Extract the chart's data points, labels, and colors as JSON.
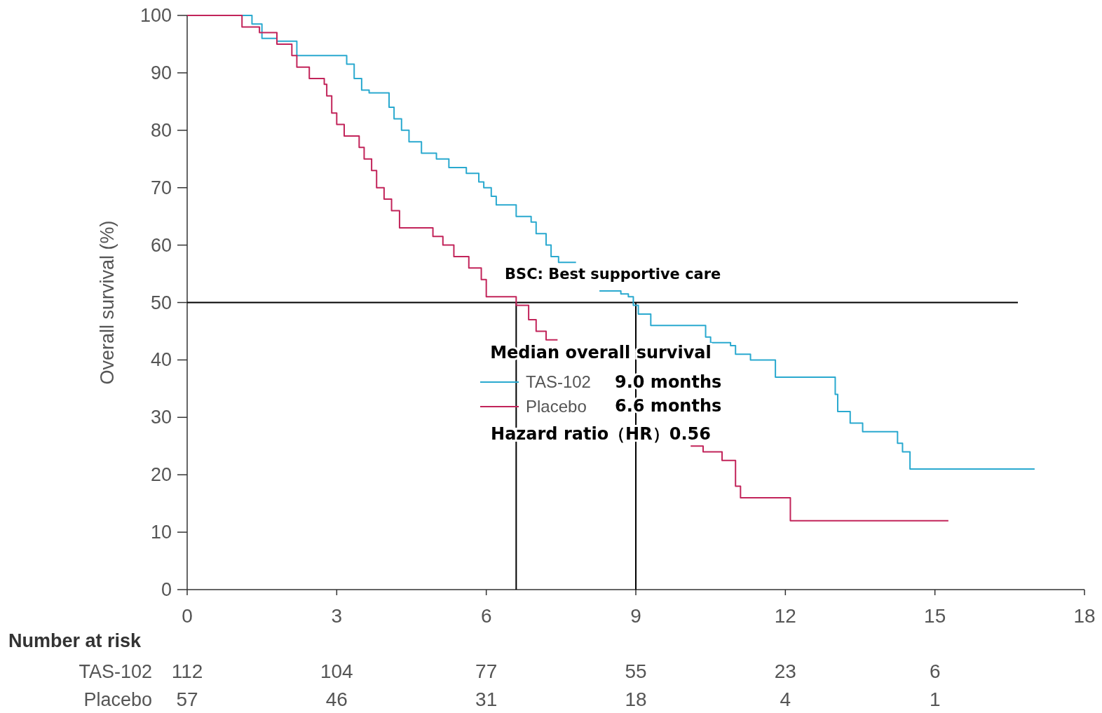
{
  "chart_data": {
    "type": "step",
    "xlabel": null,
    "ylabel": "Overall survival (%)",
    "legend_title": "Median overall survival",
    "xlim": [
      0,
      18
    ],
    "xticks": [
      0,
      3,
      6,
      9,
      12,
      15,
      18
    ],
    "ylim": [
      0,
      100
    ],
    "yticks": [
      0,
      10,
      20,
      30,
      40,
      50,
      60,
      70,
      80,
      90,
      100
    ],
    "legend": "center",
    "marker": "none",
    "line_style": "solid",
    "grid": false,
    "series": [
      {
        "name": "TAS-102",
        "color": "#2aa9cf",
        "x": [
          0,
          1.3,
          1.5,
          1.8,
          2.2,
          3.2,
          3.35,
          3.5,
          3.65,
          4.05,
          4.15,
          4.3,
          4.45,
          4.7,
          5.0,
          5.25,
          5.6,
          5.85,
          5.95,
          6.1,
          6.2,
          6.6,
          6.9,
          7.0,
          7.2,
          7.3,
          7.45,
          7.8,
          7.85,
          8.27,
          8.7,
          8.85,
          8.95,
          9.05,
          9.3,
          10.4,
          10.5,
          10.9,
          11.0,
          11.3,
          11.8,
          13.0,
          13.05,
          13.3,
          13.55,
          14.25,
          14.35,
          14.5,
          17.0
        ],
        "values": [
          100,
          98.5,
          96,
          95.5,
          93,
          91.5,
          89,
          87,
          86.5,
          84,
          82,
          80,
          78,
          76,
          75,
          73.5,
          72.5,
          71,
          70,
          68.5,
          67,
          65,
          64,
          62,
          60,
          58,
          57,
          57,
          null,
          52,
          51.5,
          51,
          49.5,
          48,
          46,
          44,
          43,
          42.5,
          41,
          40,
          37,
          34,
          31,
          29,
          27.5,
          25.5,
          24,
          21,
          21
        ]
      },
      {
        "name": "Placebo",
        "color": "#c2245a",
        "x": [
          0,
          1.1,
          1.45,
          1.8,
          2.1,
          2.2,
          2.45,
          2.75,
          2.8,
          2.9,
          3.0,
          3.15,
          3.45,
          3.55,
          3.7,
          3.8,
          3.95,
          4.1,
          4.26,
          4.93,
          5.13,
          5.35,
          5.65,
          5.9,
          6.0,
          6.6,
          6.85,
          7.0,
          7.2,
          7.43,
          7.45,
          10.1,
          10.35,
          10.73,
          11.0,
          11.1,
          12.1,
          15.27
        ],
        "values": [
          100,
          98,
          97,
          95,
          93,
          91,
          89,
          88,
          86,
          83,
          81,
          79,
          77,
          75,
          73,
          70,
          68,
          66,
          63,
          61.5,
          60,
          58,
          56,
          54,
          51,
          49.5,
          47,
          45,
          43.5,
          43.5,
          null,
          25,
          24,
          22.5,
          18,
          16,
          12,
          12
        ]
      }
    ],
    "ref_lines": [
      {
        "axis": "y",
        "value": 50,
        "color": "#000000"
      },
      {
        "axis": "x",
        "value": 6.6,
        "color": "#000000"
      },
      {
        "axis": "x",
        "value": 9.0,
        "color": "#000000"
      }
    ],
    "annotations": [
      "BSC: Best supportive care",
      "9.0 months",
      "6.6 months",
      "Hazard ratio（HR）0.56",
      "Number at risk",
      "112",
      "104",
      "77",
      "55",
      "23",
      "6",
      "57",
      "46",
      "31",
      "18",
      "4",
      "1"
    ]
  }
}
